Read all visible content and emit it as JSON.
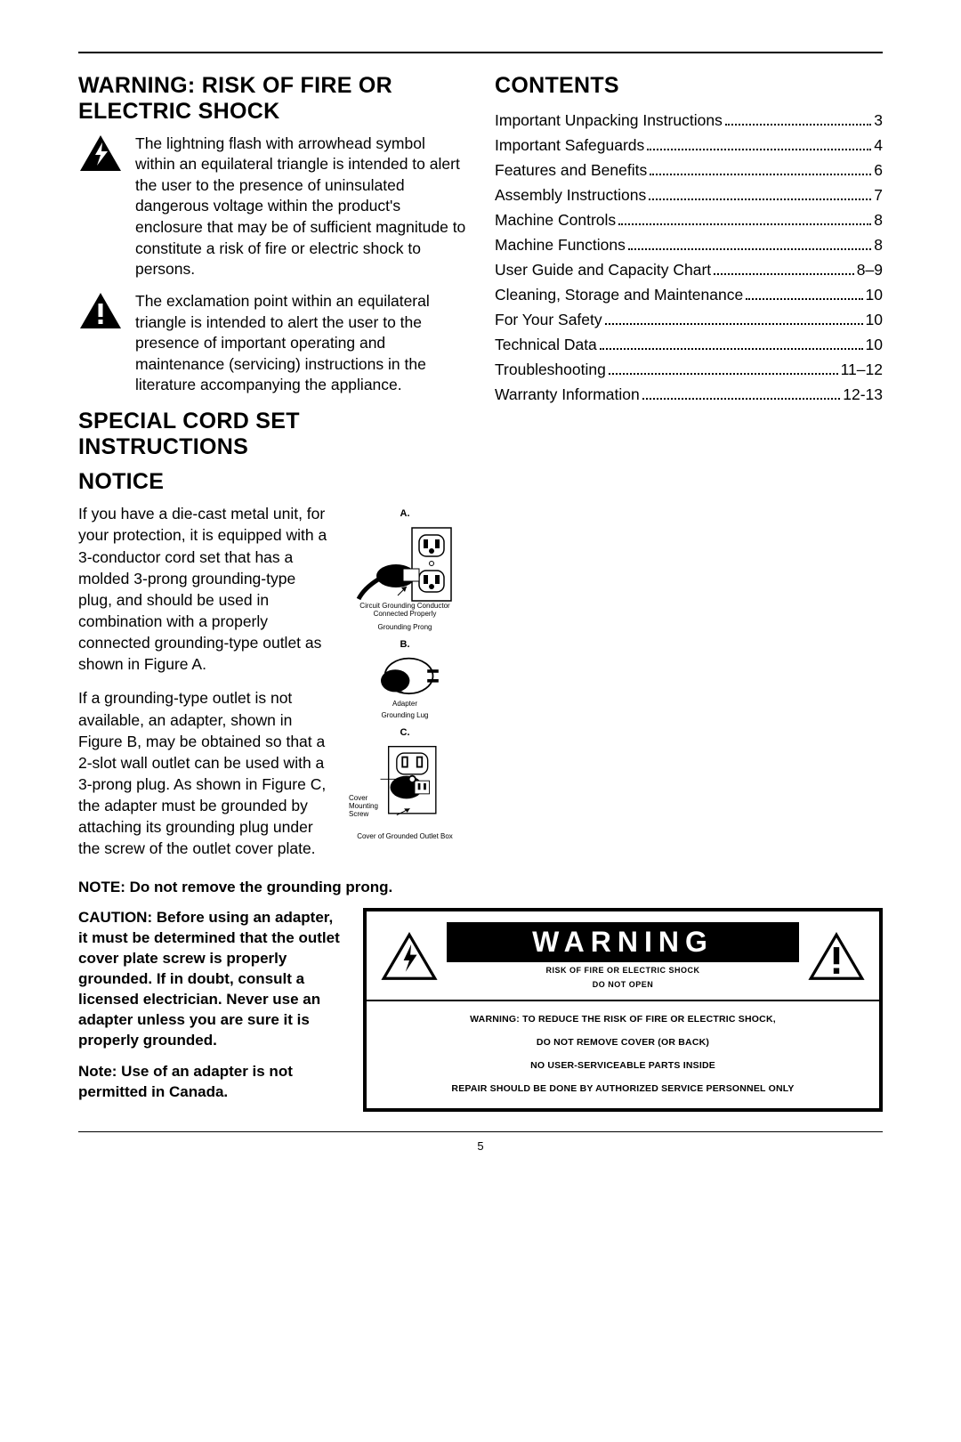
{
  "left": {
    "heading1": "WARNING: RISK OF FIRE OR ELECTRIC SHOCK",
    "symbol1_text": "The lightning flash with arrowhead symbol within an equilateral triangle is intended to alert the user to the presence of uninsulated dangerous voltage within the product's enclosure that may be of sufficient magnitude to constitute a risk of fire or electric shock to persons.",
    "symbol2_text": "The exclamation point within an equilateral triangle is intended to alert the user to the presence of important operating and maintenance (servicing) instructions in the literature accompanying the appliance.",
    "heading2a": "SPECIAL CORD SET INSTRUCTIONS",
    "heading2b": "NOTICE",
    "cord_p1": "If you have a die-cast metal unit, for your protection, it is equipped with a 3-conductor cord set that has a molded 3-prong grounding-type plug, and should be used in combination with a properly connected grounding-type outlet as shown in Figure A.",
    "cord_p2": "If a grounding-type outlet is not available, an adapter, shown in Figure B, may be obtained so that a 2-slot wall outlet can be used with a 3-prong plug. As shown in Figure C, the adapter must be grounded by attaching its grounding plug under the screw of the outlet cover plate.",
    "note1": "NOTE: Do not remove the grounding prong.",
    "caution": "CAUTION: Before using an adapter, it must be determined that the outlet cover plate screw is properly grounded. If in doubt, consult a licensed electrician. Never use an adapter unless you are sure it is properly grounded.",
    "note2": "Note: Use of an adapter is not permitted in Canada."
  },
  "contents": {
    "heading": "CONTENTS",
    "items": [
      {
        "label": "Important Unpacking Instructions",
        "page": "3"
      },
      {
        "label": "Important Safeguards",
        "page": "4"
      },
      {
        "label": "Features and Benefits",
        "page": "6"
      },
      {
        "label": "Assembly Instructions",
        "page": "7"
      },
      {
        "label": "Machine Controls",
        "page": "8"
      },
      {
        "label": "Machine Functions",
        "page": "8"
      },
      {
        "label": "User Guide and Capacity Chart",
        "page": "8–9"
      },
      {
        "label": "Cleaning, Storage and Maintenance",
        "page": "10"
      },
      {
        "label": "For Your Safety",
        "page": "10"
      },
      {
        "label": "Technical Data",
        "page": "10"
      },
      {
        "label": "Troubleshooting",
        "page": "11–12"
      },
      {
        "label": "Warranty Information",
        "page": "12-13"
      }
    ]
  },
  "figures": {
    "a": "A.",
    "a_sub1": "Circuit Grounding Conductor Connected Properly",
    "a_sub2": "Grounding Prong",
    "b": "B.",
    "b_sub1": "Adapter",
    "b_sub2": "Grounding Lug",
    "c": "C.",
    "c_sub1": "Cover Mounting Screw",
    "c_sub2": "Cover of Grounded Outlet Box"
  },
  "warnbox": {
    "banner": "WARNING",
    "sub1": "RISK OF FIRE OR ELECTRIC SHOCK",
    "sub2": "DO NOT OPEN",
    "l1": "WARNING: TO REDUCE THE RISK OF FIRE OR ELECTRIC SHOCK,",
    "l2": "DO NOT REMOVE COVER (OR BACK)",
    "l3": "NO USER-SERVICEABLE PARTS INSIDE",
    "l4": "REPAIR SHOULD BE DONE BY AUTHORIZED SERVICE PERSONNEL ONLY"
  },
  "page_number": "5"
}
